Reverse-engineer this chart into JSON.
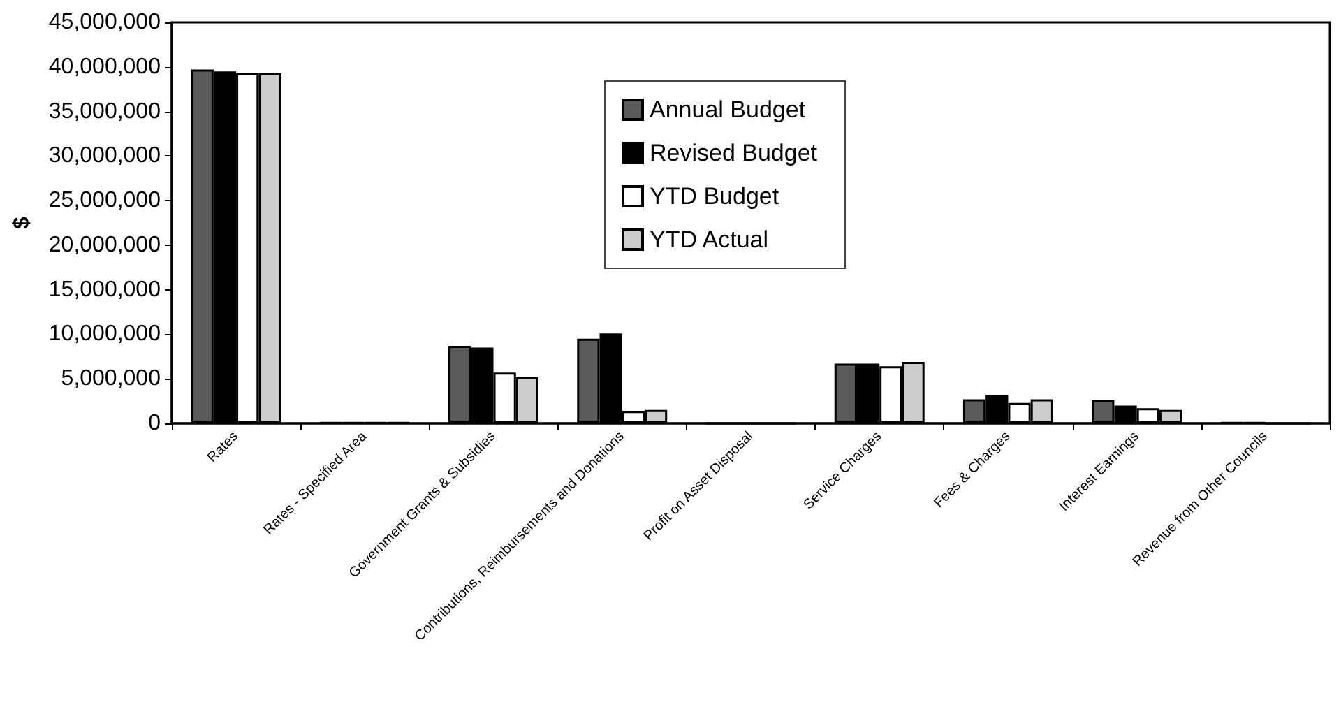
{
  "chart_data": {
    "type": "bar",
    "ylabel": "$",
    "categories": [
      "Rates",
      "Rates - Specified Area",
      "Government Grants & Subsidies",
      "Contributions, Reimbursements and Donations",
      "Profit on Asset Disposal",
      "Service Charges",
      "Fees & Charges",
      "Interest Earnings",
      "Revenue from Other Councils"
    ],
    "series": [
      {
        "name": "Annual Budget",
        "color": "#5a5a5a",
        "values": [
          39700000,
          100000,
          8700000,
          9500000,
          0,
          6700000,
          2700000,
          2600000,
          100000
        ]
      },
      {
        "name": "Revised Budget",
        "color": "#000000",
        "values": [
          39500000,
          100000,
          8500000,
          10100000,
          0,
          6700000,
          3200000,
          2000000,
          100000
        ]
      },
      {
        "name": "YTD Budget",
        "color": "#ffffff",
        "values": [
          39300000,
          100000,
          5700000,
          1400000,
          0,
          6400000,
          2300000,
          1700000,
          0
        ]
      },
      {
        "name": "YTD Actual",
        "color": "#cccccc",
        "values": [
          39300000,
          100000,
          5200000,
          1500000,
          0,
          6900000,
          2700000,
          1500000,
          0
        ]
      }
    ],
    "ylim": [
      0,
      45000000
    ],
    "yticks": [
      0,
      {
        "value": 5000000,
        "label": "5,000,000"
      },
      {
        "value": 10000000,
        "label": "10,000,000"
      },
      {
        "value": 15000000,
        "label": "15,000,000"
      },
      {
        "value": 20000000,
        "label": "20,000,000"
      },
      {
        "value": 25000000,
        "label": "25,000,000"
      },
      {
        "value": 30000000,
        "label": "30,000,000"
      },
      {
        "value": 35000000,
        "label": "35,000,000"
      },
      {
        "value": 40000000,
        "label": "40,000,000"
      },
      {
        "value": 45000000,
        "label": "45,000,000"
      }
    ],
    "grid": false,
    "legend": "top"
  }
}
